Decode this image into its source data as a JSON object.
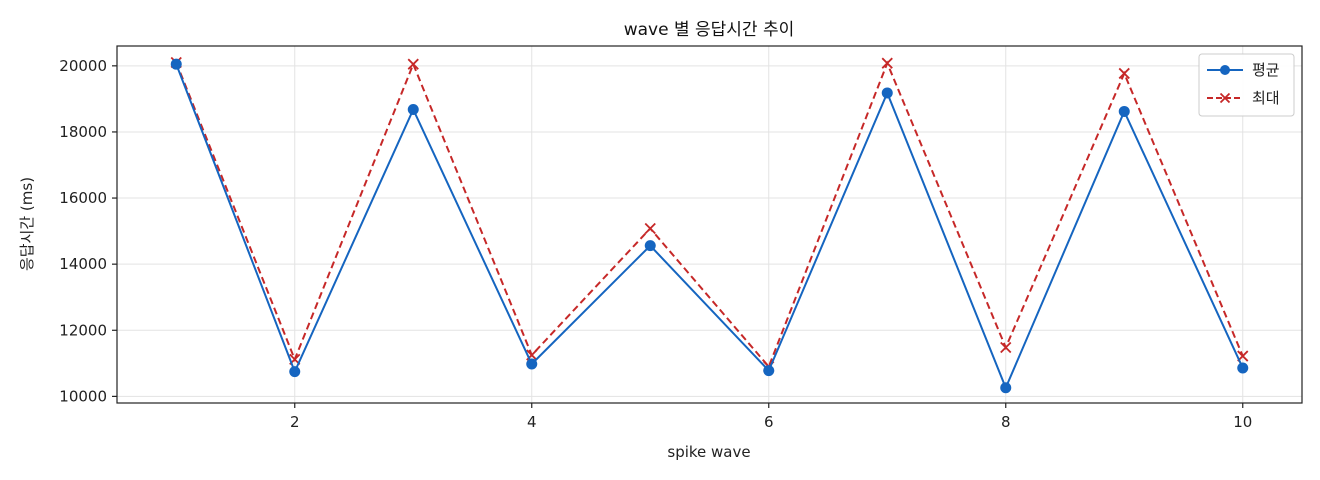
{
  "chart_data": {
    "type": "line",
    "title": "wave 별 응답시간 추이",
    "xlabel": "spike wave",
    "ylabel": "응답시간 (ms)",
    "x": [
      1,
      2,
      3,
      4,
      5,
      6,
      7,
      8,
      9,
      10
    ],
    "xlim": [
      0.5,
      10.5
    ],
    "ylim": [
      9800,
      20600
    ],
    "xticks": [
      2,
      4,
      6,
      8,
      10
    ],
    "yticks": [
      10000,
      12000,
      14000,
      16000,
      18000,
      20000
    ],
    "grid": true,
    "legend_position": "top-right",
    "series": [
      {
        "name": "평균",
        "color": "#1565c0",
        "marker": "circle",
        "line_style": "solid",
        "values": [
          20050,
          10750,
          18680,
          10980,
          14560,
          10780,
          19180,
          10260,
          18620,
          10860
        ]
      },
      {
        "name": "최대",
        "color": "#c62828",
        "marker": "x",
        "line_style": "dashed",
        "values": [
          20100,
          11120,
          20050,
          11250,
          15080,
          10900,
          20080,
          11480,
          19770,
          11220
        ]
      }
    ]
  }
}
